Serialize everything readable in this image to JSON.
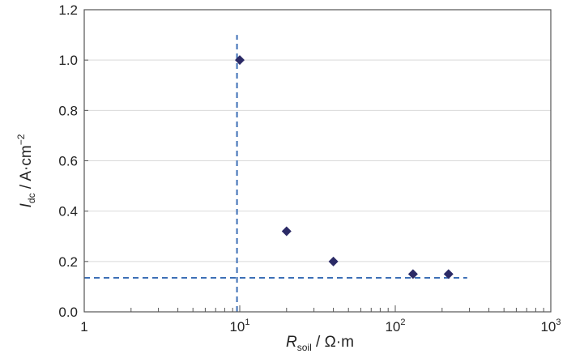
{
  "colors": {
    "marker": "#2b2a66",
    "guide": "#3d6fb6",
    "grid": "#d9d9d9",
    "axis": "#555555",
    "text": "#222222"
  },
  "chart_data": {
    "type": "scatter",
    "x_scale": "log",
    "xlim": [
      1,
      1000
    ],
    "ylim": [
      0,
      1.2
    ],
    "grid": {
      "horizontal": true,
      "vertical": false
    },
    "x_ticks": [
      {
        "base": "1",
        "exp": ""
      },
      {
        "base": "10",
        "exp": "1"
      },
      {
        "base": "10",
        "exp": "2"
      },
      {
        "base": "10",
        "exp": "3"
      }
    ],
    "y_ticks": [
      "0.0",
      "0.2",
      "0.4",
      "0.6",
      "0.8",
      "1.0",
      "1.2"
    ],
    "y_tick_values": [
      0,
      0.2,
      0.4,
      0.6,
      0.8,
      1.0,
      1.2
    ],
    "xlabel": {
      "main": "R",
      "sub": "soil",
      "rest": " / Ω·m"
    },
    "ylabel": {
      "main": "I",
      "sub": "dc",
      "rest": " / A·cm",
      "sup": "−2"
    },
    "series": [
      {
        "marker": "diamond",
        "points": [
          {
            "x": 10,
            "y": 1.0
          },
          {
            "x": 20,
            "y": 0.32
          },
          {
            "x": 40,
            "y": 0.2
          },
          {
            "x": 130,
            "y": 0.15
          },
          {
            "x": 220,
            "y": 0.15
          }
        ]
      }
    ],
    "reference_lines": [
      {
        "orientation": "vertical",
        "x": 9.6,
        "y_from": 0,
        "y_to": 1.1
      },
      {
        "orientation": "horizontal",
        "y": 0.135,
        "x_from": 1,
        "x_to": 290
      }
    ]
  }
}
